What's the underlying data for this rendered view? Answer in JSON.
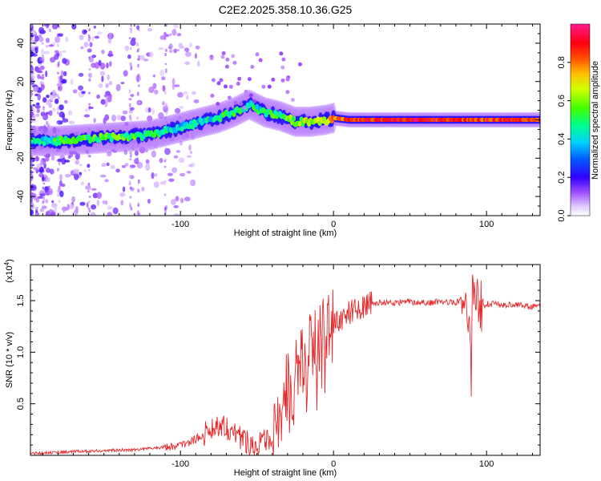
{
  "figure_title": "C2E2.2025.358.10.36.G25",
  "chart_data": [
    {
      "type": "heatmap",
      "title": "C2E2.2025.358.10.36.G25",
      "xlabel": "Height of straight line (km)",
      "ylabel": "Frequency (Hz)",
      "xlim": [
        -198,
        135
      ],
      "ylim": [
        -50,
        50
      ],
      "xticks": [
        -100,
        0,
        100
      ],
      "yticks": [
        -40,
        -20,
        0,
        20,
        40
      ],
      "xtick_labels": [
        "-100",
        "0",
        "100"
      ],
      "ytick_labels": [
        "-40",
        "-20",
        "0",
        "20",
        "40"
      ],
      "colorbar": {
        "label": "Normalized spectral amplitude",
        "range": [
          0,
          1
        ],
        "ticks": [
          0.0,
          0.2,
          0.4,
          0.6,
          0.8
        ],
        "tick_labels": [
          "0.0",
          "0.2",
          "0.4",
          "0.6",
          "0.8"
        ],
        "colormap": [
          "#ffffff",
          "#c8a0ff",
          "#7a00ff",
          "#0000ff",
          "#00c8ff",
          "#00ff80",
          "#80ff00",
          "#ffff00",
          "#ff8000",
          "#ff0000",
          "#ff2090"
        ]
      },
      "ridge": {
        "description": "dominant frequency ridge vs height",
        "x": [
          -195,
          -180,
          -160,
          -140,
          -120,
          -105,
          -90,
          -75,
          -65,
          -55,
          -45,
          -35,
          -25,
          -15,
          -5,
          0,
          10,
          30,
          60,
          90,
          120,
          135
        ],
        "y": [
          -11,
          -11,
          -10,
          -9,
          -8,
          -5,
          -2,
          1,
          4,
          8,
          4,
          2,
          -1,
          -1,
          0,
          1,
          0,
          0,
          0,
          0,
          0,
          0
        ],
        "amplitude": [
          0.4,
          0.5,
          0.55,
          0.55,
          0.5,
          0.4,
          0.4,
          0.45,
          0.5,
          0.45,
          0.45,
          0.5,
          0.6,
          0.65,
          0.7,
          0.75,
          0.85,
          0.9,
          0.9,
          0.85,
          0.9,
          0.85
        ]
      }
    },
    {
      "type": "line",
      "xlabel": "Height of straight line (km)",
      "ylabel": "SNR (10 * v/v)",
      "y_scale_label": "(x10",
      "y_scale_exponent": "4",
      "y_scale_suffix": ")",
      "xlim": [
        -198,
        135
      ],
      "ylim": [
        0,
        1.85
      ],
      "xticks": [
        -100,
        0,
        100
      ],
      "yticks": [
        0.5,
        1.0,
        1.5
      ],
      "xtick_labels": [
        "-100",
        "0",
        "100"
      ],
      "ytick_labels": [
        "0.5",
        "1.0",
        "1.5"
      ],
      "color": "#e8272a",
      "series": [
        {
          "name": "SNR",
          "x": [
            -198,
            -180,
            -160,
            -140,
            -125,
            -110,
            -100,
            -92,
            -85,
            -78,
            -72,
            -65,
            -58,
            -52,
            -46,
            -40,
            -36,
            -33,
            -30,
            -27,
            -24,
            -21,
            -18,
            -15,
            -12,
            -9,
            -6,
            -3,
            0,
            5,
            10,
            15,
            20,
            25,
            30,
            40,
            50,
            60,
            70,
            80,
            86,
            88,
            90,
            91,
            92,
            94,
            97,
            100,
            110,
            120,
            130,
            135
          ],
          "y": [
            0.02,
            0.03,
            0.04,
            0.05,
            0.06,
            0.08,
            0.1,
            0.14,
            0.2,
            0.28,
            0.3,
            0.22,
            0.15,
            0.1,
            0.14,
            0.12,
            0.25,
            0.5,
            0.85,
            0.55,
            0.9,
            1.0,
            0.95,
            1.05,
            1.15,
            1.1,
            1.2,
            1.28,
            1.3,
            1.32,
            1.38,
            1.42,
            1.45,
            1.47,
            1.48,
            1.48,
            1.49,
            1.48,
            1.49,
            1.48,
            1.55,
            1.35,
            0.75,
            1.8,
            1.5,
            1.55,
            1.44,
            1.47,
            1.46,
            1.46,
            1.44,
            1.44
          ]
        }
      ]
    }
  ]
}
